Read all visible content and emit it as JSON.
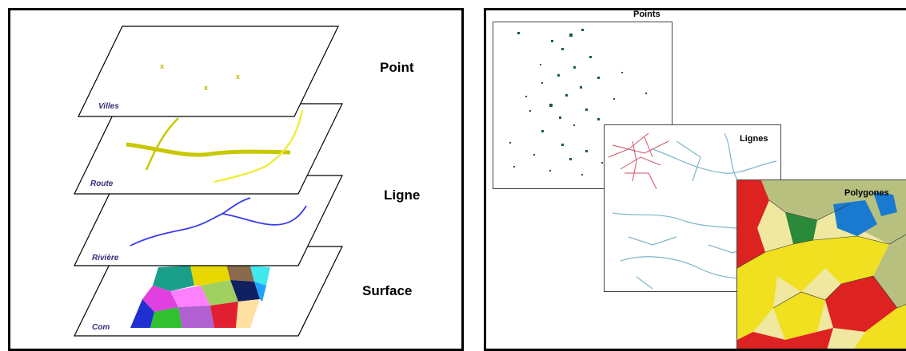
{
  "left_panel": {
    "layers": [
      {
        "label": "Villes"
      },
      {
        "label": "Route"
      },
      {
        "label": "Rivière"
      },
      {
        "label": "Com"
      }
    ],
    "types": {
      "point": "Point",
      "ligne": "Ligne",
      "surface": "Surface"
    }
  },
  "right_panel": {
    "maps": {
      "points": "Points",
      "lignes": "Lignes",
      "polygones": "Polygones"
    }
  },
  "colors": {
    "point_marker": "#c8b400",
    "road": "#c8c800",
    "road_light": "#eeee40",
    "river": "#3a3aee",
    "layer_label": "#3a2a7a",
    "scatter_dot": "#1a5a4a",
    "map_lines_red": "#cc5566",
    "map_lines_blue": "#7fb6c8",
    "poly_red": "#dd2222",
    "poly_yellow": "#f0e020",
    "poly_green": "#2a8a3a",
    "poly_blue": "#1a7ad0",
    "poly_khaki": "#b8c080"
  }
}
